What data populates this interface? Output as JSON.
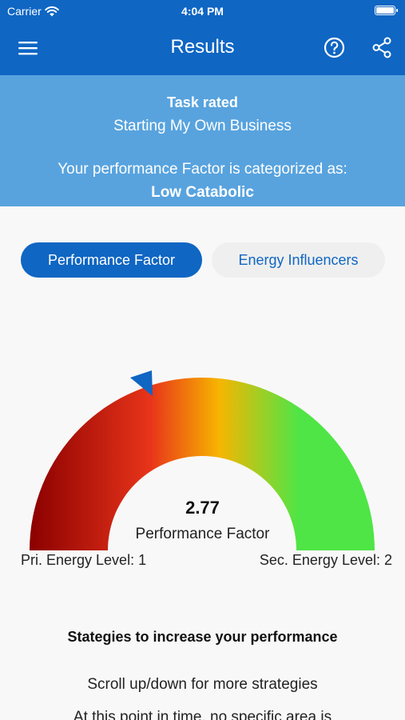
{
  "status_bar": {
    "carrier": "Carrier",
    "time": "4:04 PM"
  },
  "nav": {
    "title": "Results",
    "menu_icon": "hamburger-menu-icon",
    "help_icon": "help-circle-icon",
    "share_icon": "share-icon"
  },
  "banner": {
    "heading": "Task rated",
    "task": "Starting My Own Business",
    "category_intro": "Your performance Factor is categorized as:",
    "category": "Low Catabolic"
  },
  "tabs": [
    {
      "label": "Performance Factor",
      "active": true
    },
    {
      "label": "Energy Influencers",
      "active": false
    }
  ],
  "gauge": {
    "value": "2.77",
    "label": "Performance Factor",
    "pri_energy": "Pri. Energy Level: 1",
    "sec_energy": "Sec. Energy Level: 2",
    "colors": [
      "#8b0000",
      "#e8341a",
      "#f7b500",
      "#4fe546"
    ]
  },
  "strategies": {
    "title": "Stategies to increase your performance",
    "hint": "Scroll up/down for more strategies",
    "text": "At this point in time, no specific area is"
  },
  "colors": {
    "primary": "#0f66c3",
    "banner": "#58a3de"
  }
}
